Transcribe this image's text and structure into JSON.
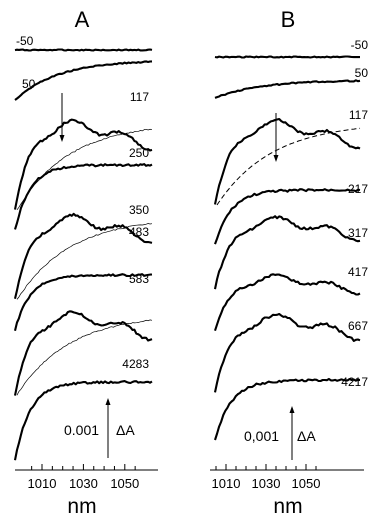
{
  "chart_data": {
    "type": "line",
    "xlabel": "nm",
    "x_ticks": [
      1010,
      1030,
      1050
    ],
    "panels": [
      {
        "label": "A",
        "delay_labels": [
          "-50",
          "50",
          "117",
          "250",
          "350",
          "483",
          "583",
          "4283"
        ],
        "scale_value": "0.001",
        "scale_unit": "ΔA",
        "reference_traces_under": [
          "117",
          "350",
          "583"
        ],
        "arrow_at": "117"
      },
      {
        "label": "B",
        "delay_labels": [
          "-50",
          "50",
          "117",
          "217",
          "317",
          "417",
          "667",
          "4217"
        ],
        "scale_value": "0,001",
        "scale_unit": "ΔA",
        "dashed_reference_under": "117",
        "arrow_at": "117"
      }
    ]
  }
}
